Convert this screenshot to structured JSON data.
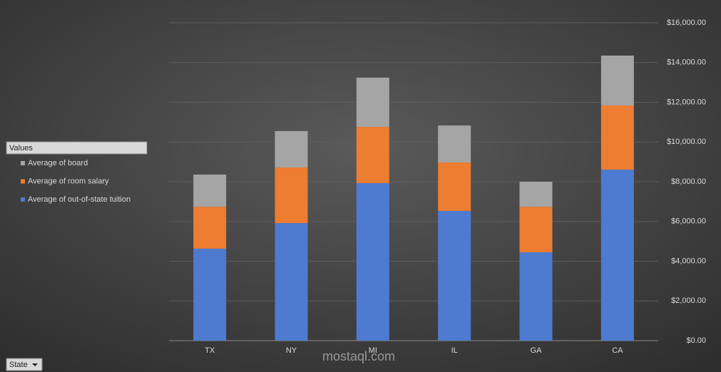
{
  "chart_data": {
    "type": "stacked_bar",
    "legend_title": "Values",
    "filter_button": "State",
    "watermark": "mostaql.com",
    "categories": [
      "TX",
      "NY",
      "MI",
      "IL",
      "GA",
      "CA"
    ],
    "series": [
      {
        "name": "Average of out-of-state tuition",
        "color": "#4e7bd0",
        "values": [
          4630,
          5920,
          7930,
          6530,
          4450,
          8610
        ]
      },
      {
        "name": "Average of room salary",
        "color": "#ed7d31",
        "values": [
          2110,
          2800,
          2830,
          2440,
          2290,
          3230
        ]
      },
      {
        "name": "Average of board",
        "color": "#a5a5a5",
        "values": [
          1620,
          1830,
          2480,
          1860,
          1260,
          2510
        ]
      }
    ],
    "ylim": [
      0,
      16000
    ],
    "yticks": [
      {
        "value": 0,
        "label": "$0.00"
      },
      {
        "value": 2000,
        "label": "$2,000.00"
      },
      {
        "value": 4000,
        "label": "$4,000.00"
      },
      {
        "value": 6000,
        "label": "$6,000.00"
      },
      {
        "value": 8000,
        "label": "$8,000.00"
      },
      {
        "value": 10000,
        "label": "$10,000.00"
      },
      {
        "value": 12000,
        "label": "$12,000.00"
      },
      {
        "value": 14000,
        "label": "$14,000.00"
      },
      {
        "value": 16000,
        "label": "$16,000.00"
      }
    ],
    "grid": true,
    "legend_position": "left"
  }
}
